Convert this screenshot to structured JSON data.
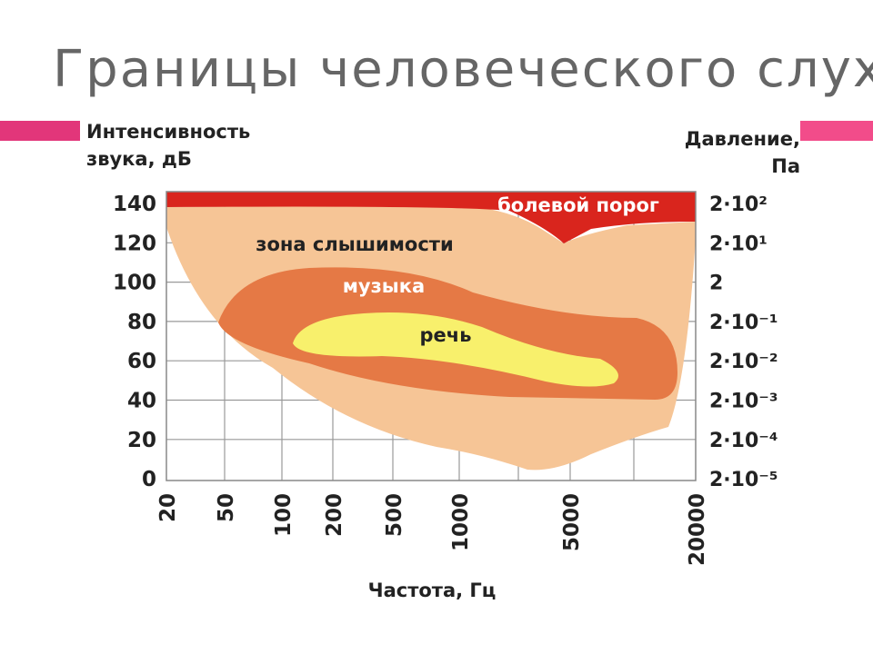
{
  "header": {
    "title": "Границы человеческого слуха"
  },
  "figure": {
    "y_axis_title": [
      "Интенсивность",
      "звука, дБ"
    ],
    "y2_axis_title": [
      "Давление,",
      "Па"
    ],
    "x_axis_title": "Частота, Гц",
    "y_ticks": [
      "140",
      "120",
      "100",
      "80",
      "60",
      "40",
      "20",
      "0"
    ],
    "y2_ticks": [
      "2·10²",
      "2·10¹",
      "2",
      "2·10⁻¹",
      "2·10⁻²",
      "2·10⁻³",
      "2·10⁻⁴",
      "2·10⁻⁵"
    ],
    "x_ticks": [
      "20",
      "50",
      "100",
      "200",
      "500",
      "1000",
      "5000",
      "20000"
    ],
    "regions": {
      "pain": "болевой порог",
      "hearing": "зона слышимости",
      "music": "музыка",
      "speech": "речь"
    }
  }
}
